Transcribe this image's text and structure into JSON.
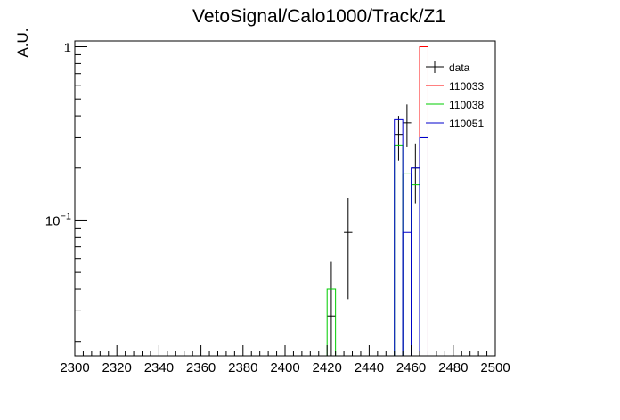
{
  "chart_data": {
    "type": "histogram",
    "title": "VetoSignal/Calo1000/Track/Z1",
    "xlabel": "",
    "ylabel": "A.U.",
    "x_range": [
      2300,
      2500
    ],
    "y_range": [
      0.0165,
      1.08
    ],
    "y_scale": "log",
    "x_tick_labels": [
      "2300",
      "2320",
      "2340",
      "2360",
      "2380",
      "2400",
      "2420",
      "2440",
      "2460",
      "2480",
      "2500"
    ],
    "y_tick_labels": [
      {
        "value": 1,
        "label": "1"
      },
      {
        "value": 0.1,
        "label": "10^-1"
      }
    ],
    "legend_position": "top-right",
    "grid": false,
    "bin_width": 4,
    "series": [
      {
        "name": "data",
        "kind": "points",
        "color": "#000000",
        "points": [
          {
            "x": 2422,
            "y": 0.028,
            "err_lo": 0.012,
            "err_hi": 0.03
          },
          {
            "x": 2430,
            "y": 0.085,
            "err_lo": 0.05,
            "err_hi": 0.05
          },
          {
            "x": 2454,
            "y": 0.31,
            "err_lo": 0.09,
            "err_hi": 0.09
          },
          {
            "x": 2458,
            "y": 0.365,
            "err_lo": 0.1,
            "err_hi": 0.1
          },
          {
            "x": 2462,
            "y": 0.2,
            "err_lo": 0.075,
            "err_hi": 0.075
          },
          {
            "x": 2466,
            "y": 0.3,
            "err_lo": 0.0,
            "err_hi": 0.0
          }
        ]
      },
      {
        "name": "110033",
        "kind": "hist",
        "color": "#ff0000",
        "bins": [
          {
            "x0": 2464,
            "x1": 2468,
            "y": 1.0
          }
        ]
      },
      {
        "name": "110038",
        "kind": "hist",
        "color": "#00cc00",
        "bins": [
          {
            "x0": 2420,
            "x1": 2424,
            "y": 0.04
          },
          {
            "x0": 2452,
            "x1": 2456,
            "y": 0.27
          },
          {
            "x0": 2456,
            "x1": 2460,
            "y": 0.185
          },
          {
            "x0": 2460,
            "x1": 2464,
            "y": 0.16
          }
        ]
      },
      {
        "name": "110051",
        "kind": "hist",
        "color": "#0000cc",
        "bins": [
          {
            "x0": 2452,
            "x1": 2456,
            "y": 0.38
          },
          {
            "x0": 2456,
            "x1": 2460,
            "y": 0.085
          },
          {
            "x0": 2460,
            "x1": 2464,
            "y": 0.2
          },
          {
            "x0": 2464,
            "x1": 2468,
            "y": 0.3
          }
        ]
      }
    ]
  }
}
